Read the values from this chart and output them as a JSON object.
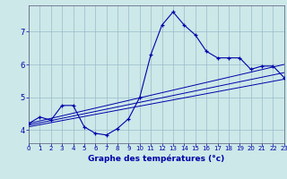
{
  "title": "Graphe des températures (°c)",
  "bg_color": "#cce8e8",
  "grid_color": "#99bbcc",
  "line_color": "#0000aa",
  "x_ticks": [
    0,
    1,
    2,
    3,
    4,
    5,
    6,
    7,
    8,
    9,
    10,
    11,
    12,
    13,
    14,
    15,
    16,
    17,
    18,
    19,
    20,
    21,
    22,
    23
  ],
  "y_ticks": [
    4,
    5,
    6,
    7
  ],
  "xlim": [
    0,
    23
  ],
  "ylim": [
    3.6,
    7.8
  ],
  "curve1_x": [
    0,
    1,
    2,
    3,
    4,
    5,
    6,
    7,
    8,
    9,
    10,
    11,
    12,
    13,
    14,
    15,
    16,
    17,
    18,
    19,
    20,
    21,
    22,
    23
  ],
  "curve1_y": [
    4.2,
    4.4,
    4.3,
    4.75,
    4.75,
    4.1,
    3.9,
    3.85,
    4.05,
    4.35,
    5.0,
    6.3,
    7.2,
    7.6,
    7.2,
    6.9,
    6.4,
    6.2,
    6.2,
    6.2,
    5.85,
    5.95,
    5.95,
    5.6
  ],
  "reg1": [
    4.1,
    5.55
  ],
  "reg2": [
    4.15,
    5.75
  ],
  "reg3": [
    4.2,
    6.0
  ]
}
